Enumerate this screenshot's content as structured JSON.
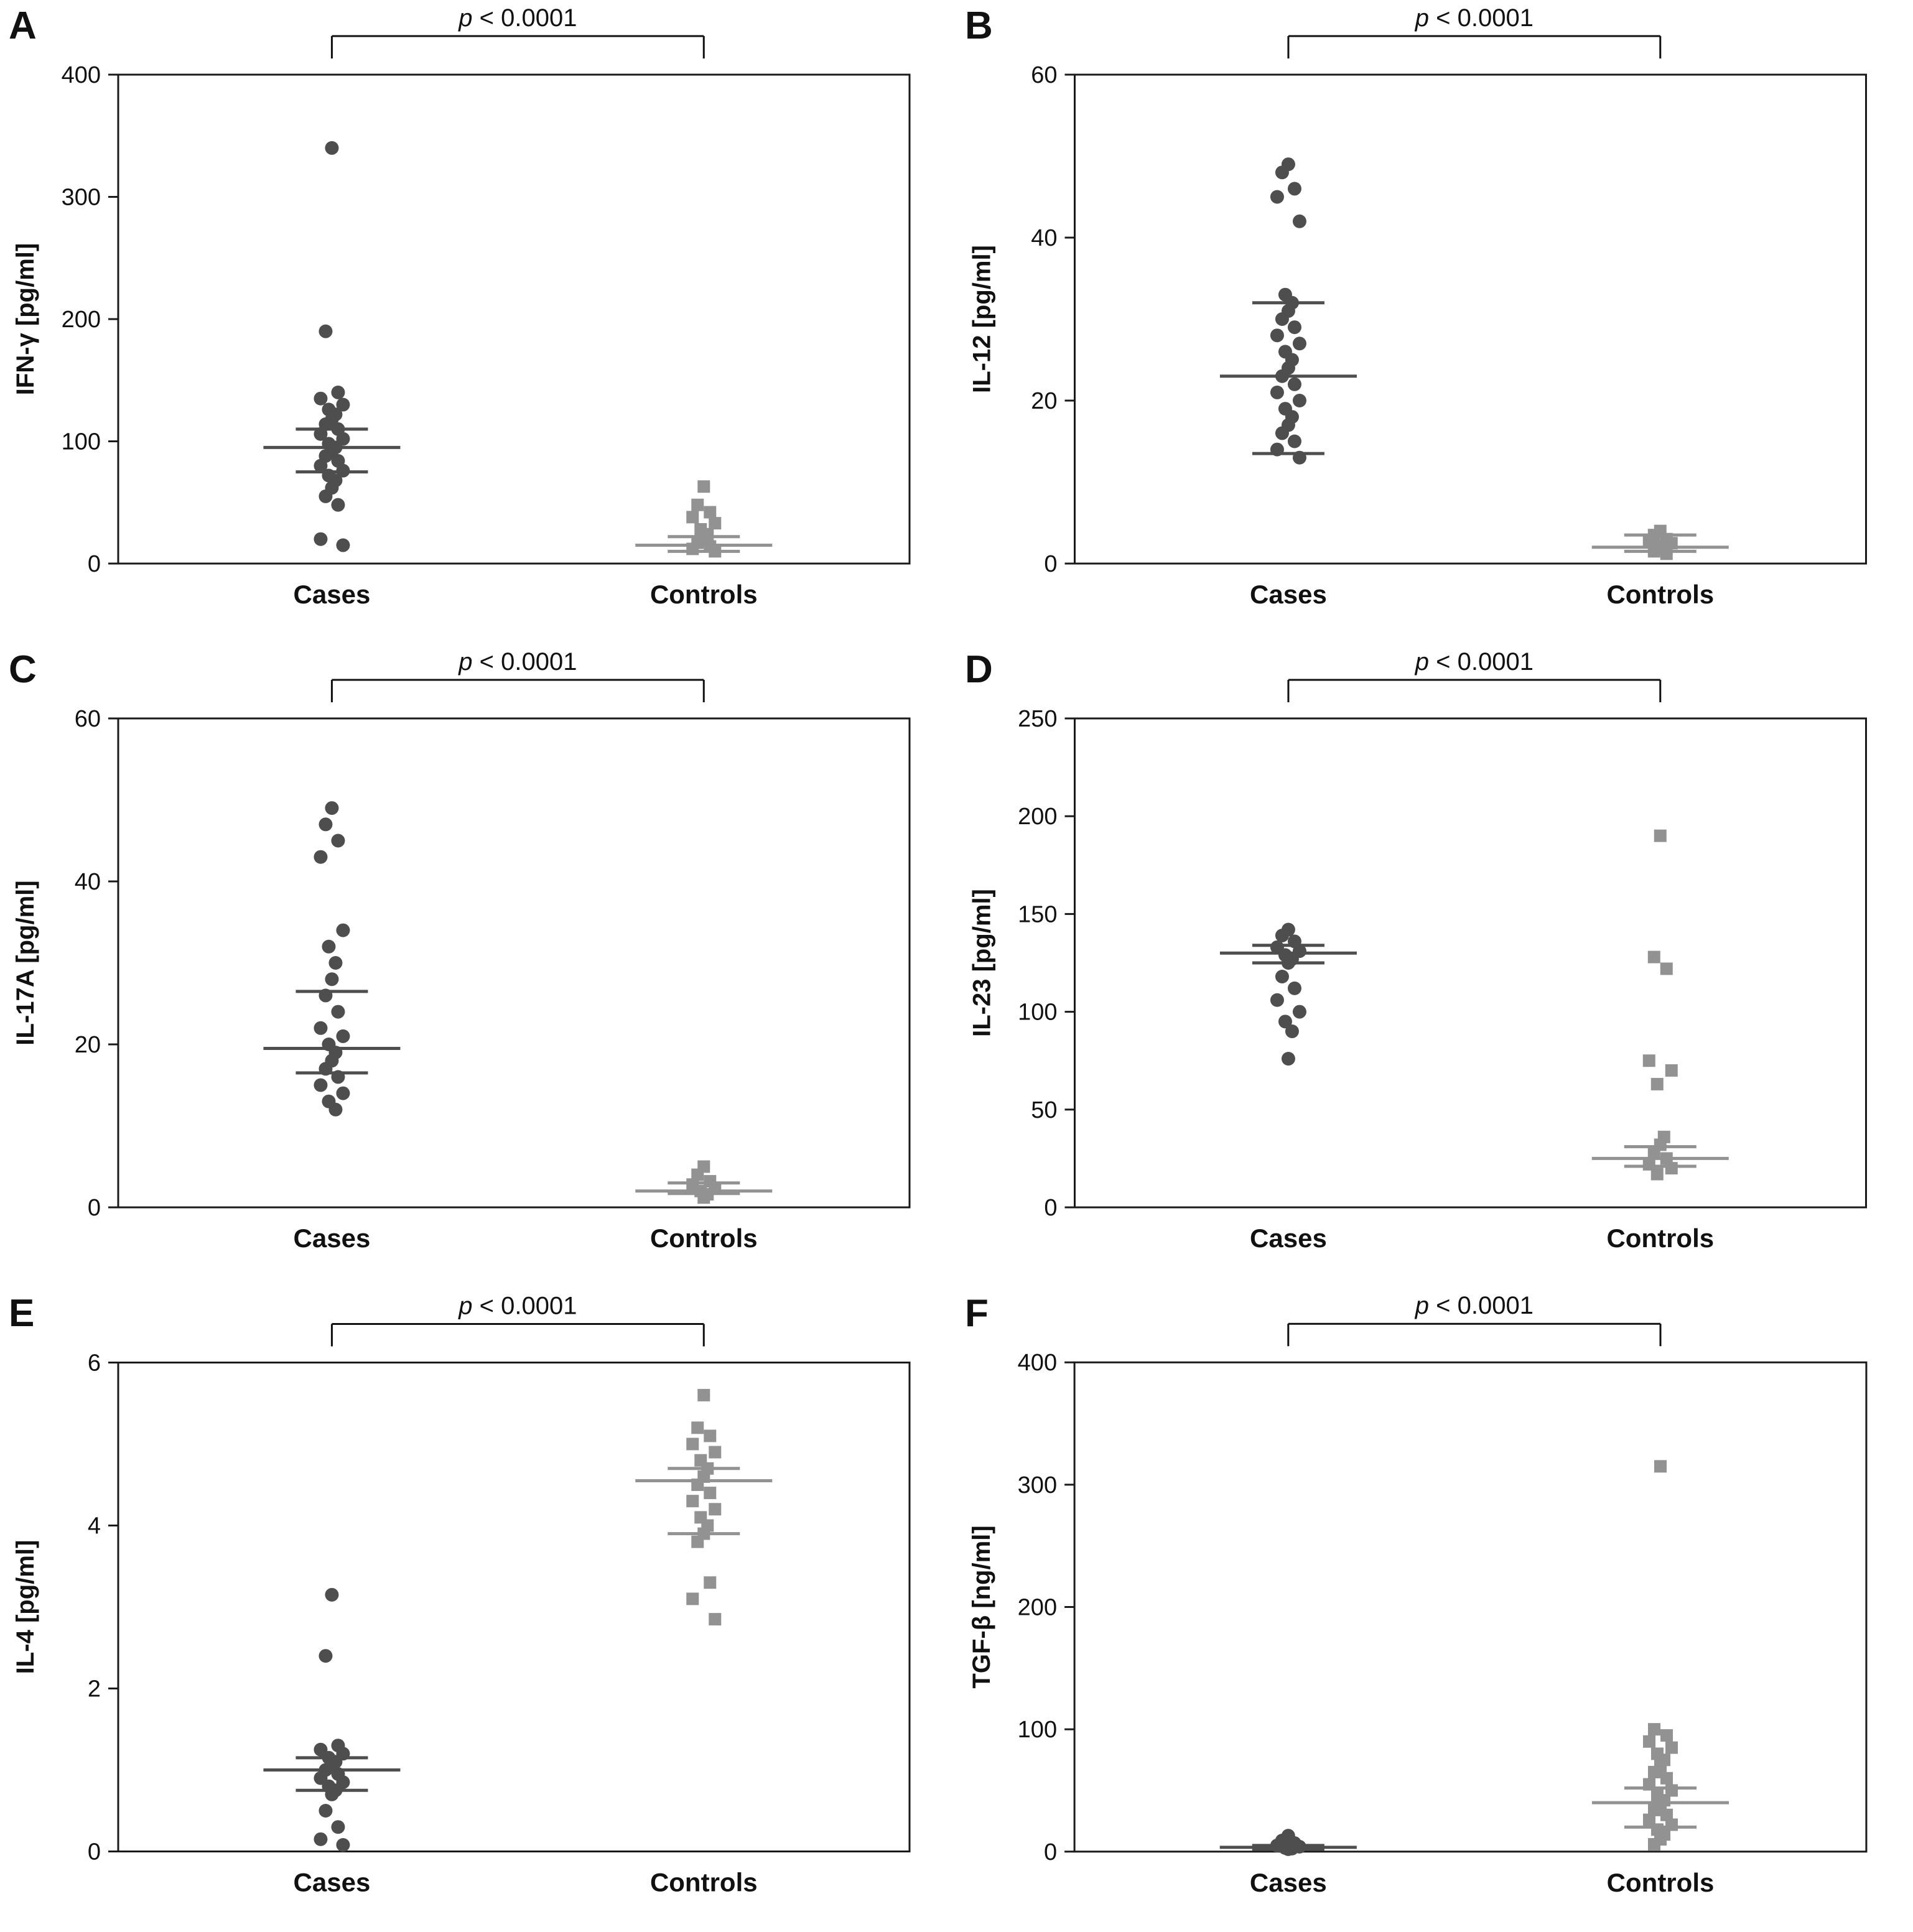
{
  "figure": {
    "background": "#ffffff"
  },
  "colors": {
    "cases": "#4e4e4e",
    "controls": "#929292",
    "frame": "#1a1a1a",
    "text": "#111111"
  },
  "chart_data": [
    {
      "label": "A",
      "type": "scatter",
      "ylabel": "IFN-γ [pg/ml]",
      "ylim": [
        0,
        400
      ],
      "yticks": [
        0,
        100,
        200,
        300,
        400
      ],
      "categories": [
        "Cases",
        "Controls"
      ],
      "p_label": "p < 0.0001",
      "series": [
        {
          "name": "Cases",
          "marker": "circle",
          "color": "#4e4e4e",
          "values": [
            340,
            190,
            140,
            135,
            130,
            126,
            122,
            118,
            114,
            110,
            106,
            102,
            98,
            95,
            92,
            88,
            84,
            80,
            76,
            72,
            68,
            62,
            55,
            48,
            20,
            15
          ],
          "median": 95,
          "err_low": 75,
          "err_high": 110
        },
        {
          "name": "Controls",
          "marker": "square",
          "color": "#929292",
          "values": [
            63,
            48,
            42,
            38,
            33,
            28,
            24,
            20,
            17,
            14,
            12,
            10
          ],
          "median": 15,
          "err_low": 10,
          "err_high": 22
        }
      ]
    },
    {
      "label": "B",
      "type": "scatter",
      "ylabel": "IL-12 [pg/ml]",
      "ylim": [
        0,
        60
      ],
      "yticks": [
        0,
        20,
        40,
        60
      ],
      "categories": [
        "Cases",
        "Controls"
      ],
      "p_label": "p < 0.0001",
      "series": [
        {
          "name": "Cases",
          "marker": "circle",
          "color": "#4e4e4e",
          "values": [
            49,
            48,
            46,
            45,
            42,
            33,
            32,
            31,
            30,
            29,
            28,
            27,
            26,
            25,
            24,
            23,
            22,
            21,
            20,
            19,
            18,
            17,
            16,
            15,
            14,
            13
          ],
          "median": 23,
          "err_low": 13.5,
          "err_high": 32
        },
        {
          "name": "Controls",
          "marker": "square",
          "color": "#929292",
          "values": [
            4,
            3.5,
            3,
            2.8,
            2.5,
            2.2,
            2,
            1.8,
            1.5,
            1.2
          ],
          "median": 2,
          "err_low": 1.5,
          "err_high": 3.5
        }
      ]
    },
    {
      "label": "C",
      "type": "scatter",
      "ylabel": "IL-17A [pg/ml]",
      "ylim": [
        0,
        60
      ],
      "yticks": [
        0,
        20,
        40,
        60
      ],
      "categories": [
        "Cases",
        "Controls"
      ],
      "p_label": "p < 0.0001",
      "series": [
        {
          "name": "Cases",
          "marker": "circle",
          "color": "#4e4e4e",
          "values": [
            49,
            47,
            45,
            43,
            34,
            32,
            30,
            28,
            26,
            24,
            22,
            21,
            20,
            19,
            18,
            17,
            16,
            15,
            14,
            13,
            12
          ],
          "median": 19.5,
          "err_low": 16.5,
          "err_high": 26.5
        },
        {
          "name": "Controls",
          "marker": "square",
          "color": "#929292",
          "values": [
            5,
            4,
            3.2,
            2.8,
            2.4,
            2,
            1.6,
            1.2
          ],
          "median": 2,
          "err_low": 1.7,
          "err_high": 3
        }
      ]
    },
    {
      "label": "D",
      "type": "scatter",
      "ylabel": "IL-23 [pg/ml]",
      "ylim": [
        0,
        250
      ],
      "yticks": [
        0,
        50,
        100,
        150,
        200,
        250
      ],
      "categories": [
        "Cases",
        "Controls"
      ],
      "p_label": "p < 0.0001",
      "series": [
        {
          "name": "Cases",
          "marker": "circle",
          "color": "#4e4e4e",
          "values": [
            142,
            139,
            136,
            133,
            131,
            129,
            127,
            125,
            118,
            112,
            106,
            100,
            95,
            90,
            76
          ],
          "median": 130,
          "err_low": 125,
          "err_high": 134
        },
        {
          "name": "Controls",
          "marker": "square",
          "color": "#929292",
          "values": [
            190,
            128,
            122,
            75,
            70,
            63,
            36,
            32,
            28,
            25,
            22,
            20,
            17
          ],
          "median": 25,
          "err_low": 21,
          "err_high": 31
        }
      ]
    },
    {
      "label": "E",
      "type": "scatter",
      "ylabel": "IL-4 [pg/ml]",
      "ylim": [
        0,
        6
      ],
      "yticks": [
        0,
        2,
        4,
        6
      ],
      "categories": [
        "Cases",
        "Controls"
      ],
      "p_label": "p < 0.0001",
      "series": [
        {
          "name": "Cases",
          "marker": "circle",
          "color": "#4e4e4e",
          "values": [
            3.15,
            2.4,
            1.3,
            1.25,
            1.2,
            1.15,
            1.1,
            1.05,
            1.0,
            0.95,
            0.9,
            0.85,
            0.8,
            0.75,
            0.7,
            0.5,
            0.3,
            0.15,
            0.08
          ],
          "median": 1.0,
          "err_low": 0.75,
          "err_high": 1.15
        },
        {
          "name": "Controls",
          "marker": "square",
          "color": "#929292",
          "values": [
            5.6,
            5.2,
            5.1,
            5.0,
            4.9,
            4.8,
            4.7,
            4.6,
            4.5,
            4.4,
            4.3,
            4.2,
            4.1,
            4.0,
            3.9,
            3.8,
            3.3,
            3.1,
            2.85
          ],
          "median": 4.55,
          "err_low": 3.9,
          "err_high": 4.7
        }
      ]
    },
    {
      "label": "F",
      "type": "scatter",
      "ylabel": "TGF-β [ng/ml]",
      "ylim": [
        0,
        400
      ],
      "yticks": [
        0,
        100,
        200,
        300,
        400
      ],
      "categories": [
        "Cases",
        "Controls"
      ],
      "p_label": "p < 0.0001",
      "series": [
        {
          "name": "Cases",
          "marker": "circle",
          "color": "#4e4e4e",
          "values": [
            13,
            9,
            7,
            5,
            4,
            3,
            2.5,
            2
          ],
          "median": 3.5,
          "err_low": 2,
          "err_high": 5
        },
        {
          "name": "Controls",
          "marker": "square",
          "color": "#929292",
          "values": [
            315,
            100,
            95,
            90,
            85,
            80,
            75,
            70,
            65,
            60,
            55,
            50,
            46,
            42,
            38,
            34,
            30,
            26,
            22,
            18,
            14,
            10,
            6
          ],
          "median": 40,
          "err_low": 20,
          "err_high": 52
        }
      ]
    }
  ]
}
